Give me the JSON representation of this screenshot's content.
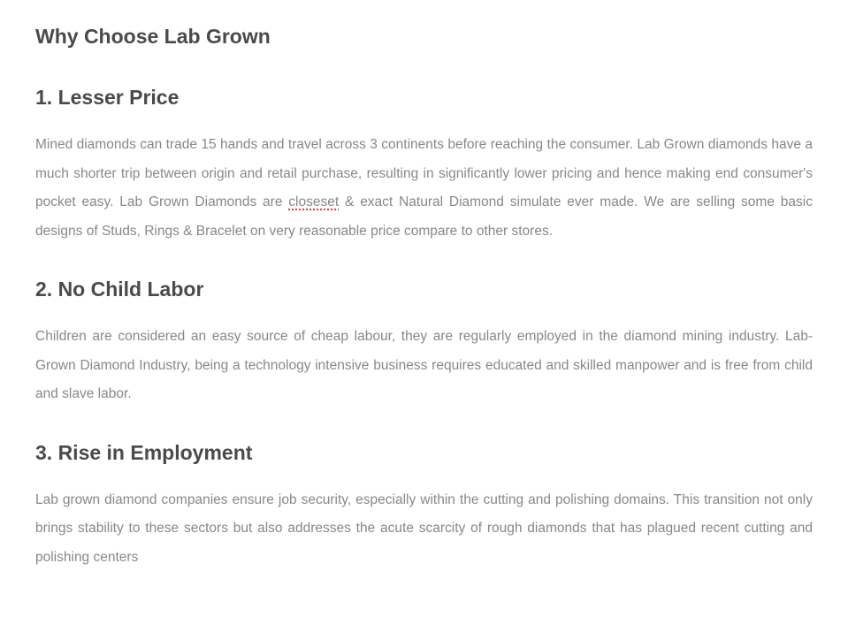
{
  "page": {
    "title": "Why Choose Lab Grown",
    "text_color_heading": "#4a4a4a",
    "text_color_body": "#888888",
    "background_color": "#ffffff",
    "title_fontsize": 23,
    "heading_fontsize": 23,
    "body_fontsize": 15.5,
    "body_line_height": 2.1,
    "misspell_underline_color": "#d83b3b"
  },
  "sections": [
    {
      "heading": "1. Lesser Price",
      "body_pre": "Mined diamonds can trade 15 hands and travel across 3 continents before reaching the consumer. Lab Grown diamonds have a much shorter trip between origin and retail purchase, resulting in significantly lower pricing and hence making end consumer's pocket easy. Lab Grown Diamonds are ",
      "misspelled_word": "closeset",
      "body_post": " & exact Natural Diamond simulate ever made.  We are selling some basic designs of Studs, Rings & Bracelet on very reasonable price compare to other stores."
    },
    {
      "heading": "2. No Child Labor",
      "body": "Children are considered an easy source of cheap labour, they are regularly employed in the diamond mining industry. Lab-Grown Diamond Industry, being a technology intensive business requires educated and skilled manpower and is free from child and slave labor."
    },
    {
      "heading": "3. Rise in Employment",
      "body": "Lab grown diamond companies ensure job security, especially within the cutting and polishing domains. This transition not only brings stability to these sectors but also addresses the acute scarcity of rough diamonds that has plagued recent cutting and polishing centers"
    }
  ]
}
